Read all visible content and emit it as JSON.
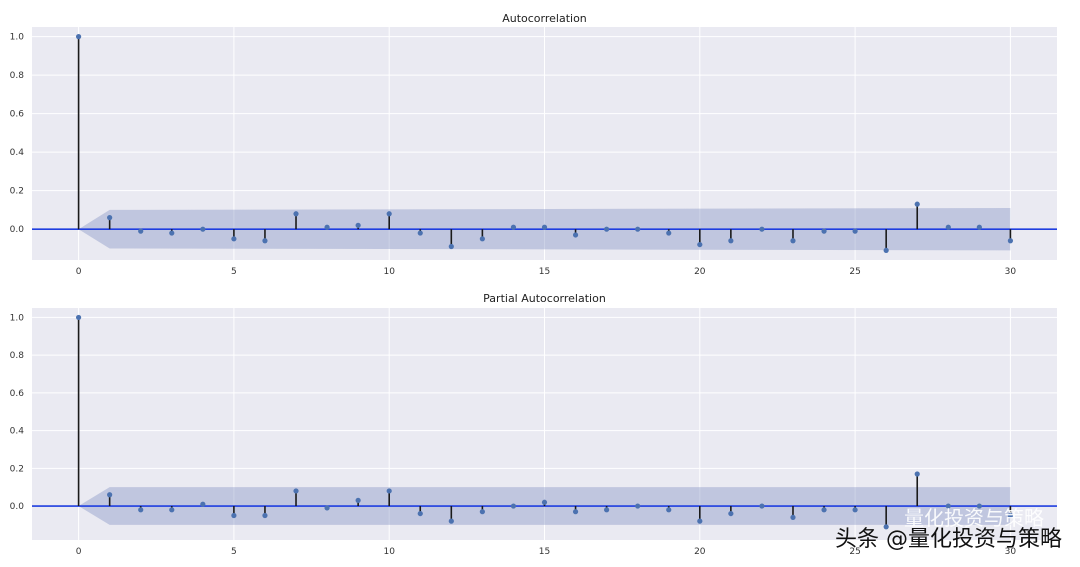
{
  "chart_data": [
    {
      "type": "stem",
      "title": "Autocorrelation",
      "xlabel": "",
      "ylabel": "",
      "xlim": [
        -1.5,
        31.5
      ],
      "ylim": [
        -0.16,
        1.05
      ],
      "xticks": [
        0,
        5,
        10,
        15,
        20,
        25,
        30
      ],
      "yticks": [
        0.0,
        0.2,
        0.4,
        0.6,
        0.8,
        1.0
      ],
      "grid": true,
      "lags": [
        0,
        1,
        2,
        3,
        4,
        5,
        6,
        7,
        8,
        9,
        10,
        11,
        12,
        13,
        14,
        15,
        16,
        17,
        18,
        19,
        20,
        21,
        22,
        23,
        24,
        25,
        26,
        27,
        28,
        29,
        30
      ],
      "values": [
        1.0,
        0.06,
        -0.01,
        -0.02,
        0.0,
        -0.05,
        -0.06,
        0.08,
        0.01,
        0.02,
        0.08,
        -0.02,
        -0.09,
        -0.05,
        0.01,
        0.01,
        -0.03,
        0.0,
        0.0,
        -0.02,
        -0.08,
        -0.06,
        0.0,
        -0.06,
        -0.01,
        -0.01,
        -0.11,
        0.13,
        0.01,
        0.01,
        -0.06
      ],
      "confidence_band": {
        "x": [
          0,
          1,
          30
        ],
        "upper": [
          0.0,
          0.1,
          0.11
        ],
        "lower": [
          0.0,
          -0.1,
          -0.11
        ]
      }
    },
    {
      "type": "stem",
      "title": "Partial Autocorrelation",
      "xlabel": "",
      "ylabel": "",
      "xlim": [
        -1.5,
        31.5
      ],
      "ylim": [
        -0.18,
        1.05
      ],
      "xticks": [
        0,
        5,
        10,
        15,
        20,
        25,
        30
      ],
      "yticks": [
        0.0,
        0.2,
        0.4,
        0.6,
        0.8,
        1.0
      ],
      "grid": true,
      "lags": [
        0,
        1,
        2,
        3,
        4,
        5,
        6,
        7,
        8,
        9,
        10,
        11,
        12,
        13,
        14,
        15,
        16,
        17,
        18,
        19,
        20,
        21,
        22,
        23,
        24,
        25,
        26,
        27,
        28,
        29,
        30
      ],
      "values": [
        1.0,
        0.06,
        -0.02,
        -0.02,
        0.01,
        -0.05,
        -0.05,
        0.08,
        -0.01,
        0.03,
        0.08,
        -0.04,
        -0.08,
        -0.03,
        0.0,
        0.02,
        -0.03,
        -0.02,
        0.0,
        -0.02,
        -0.08,
        -0.04,
        0.0,
        -0.06,
        -0.02,
        -0.02,
        -0.11,
        0.17,
        0.0,
        0.0,
        -0.05
      ],
      "confidence_band": {
        "x": [
          0,
          1,
          30
        ],
        "upper": [
          0.0,
          0.1,
          0.1
        ],
        "lower": [
          0.0,
          -0.1,
          -0.1
        ]
      }
    }
  ],
  "watermark": {
    "text": "头条 @量化投资与策略",
    "ghost_text": "量化投资与策略"
  },
  "colors": {
    "marker": "#4c72b0",
    "zero_line": "#1f3ee0",
    "band": "#8e9cc8",
    "stem": "#1a1a1a",
    "plot_bg": "#eaeaf2"
  }
}
